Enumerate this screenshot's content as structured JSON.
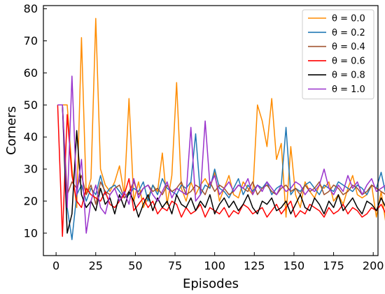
{
  "chart_data": {
    "type": "line",
    "xlabel": "Episodes",
    "ylabel": "Corners",
    "xlim": [
      -8,
      203
    ],
    "ylim": [
      3,
      81
    ],
    "x_ticks": [
      0,
      25,
      50,
      75,
      100,
      125,
      150,
      175,
      200
    ],
    "y_ticks": [
      10,
      20,
      30,
      40,
      50,
      60,
      70,
      80
    ],
    "grid": false,
    "legend_position": "top-right",
    "x_start": 1,
    "x_step": 3,
    "series": [
      {
        "name": "θ = 0.0",
        "color": "#ff8c00",
        "values": [
          50,
          50,
          50,
          30,
          18,
          71,
          22,
          27,
          77,
          30,
          25,
          23,
          26,
          31,
          22,
          52,
          20,
          26,
          18,
          21,
          25,
          23,
          35,
          19,
          28,
          57,
          24,
          20,
          26,
          22,
          25,
          27,
          24,
          29,
          20,
          24,
          28,
          22,
          21,
          26,
          24,
          22,
          50,
          45,
          37,
          52,
          33,
          38,
          15,
          37,
          22,
          18,
          26,
          23,
          21,
          25,
          24,
          26,
          20,
          22,
          19,
          24,
          28,
          22,
          21,
          22,
          25,
          15,
          23,
          13
        ]
      },
      {
        "name": "θ = 0.2",
        "color": "#1f77b4",
        "values": [
          50,
          50,
          18,
          8,
          22,
          25,
          20,
          24,
          22,
          28,
          22,
          24,
          25,
          23,
          21,
          22,
          24,
          23,
          26,
          20,
          25,
          22,
          27,
          24,
          23,
          22,
          25,
          24,
          26,
          41,
          22,
          25,
          24,
          30,
          24,
          23,
          21,
          24,
          27,
          22,
          25,
          23,
          25,
          24,
          26,
          22,
          24,
          25,
          43,
          22,
          24,
          23,
          25,
          26,
          24,
          22,
          25,
          24,
          23,
          26,
          25,
          24,
          23,
          25,
          24,
          22,
          25,
          24,
          29,
          22
        ]
      },
      {
        "name": "θ = 0.4",
        "color": "#a0522d",
        "values": [
          50,
          50,
          22,
          26,
          24,
          28,
          22,
          25,
          19,
          26,
          23,
          22,
          24,
          25,
          21,
          23,
          26,
          22,
          24,
          25,
          23,
          24,
          22,
          25,
          23,
          24,
          26,
          22,
          23,
          25,
          24,
          22,
          26,
          23,
          25,
          24,
          22,
          23,
          25,
          24,
          23,
          26,
          22,
          24,
          25,
          23,
          22,
          24,
          25,
          23,
          24,
          22,
          25,
          23,
          24,
          26,
          22,
          23,
          25,
          24,
          22,
          23,
          25,
          24,
          22,
          23,
          25,
          24,
          23,
          22
        ]
      },
      {
        "name": "θ = 0.6",
        "color": "#ff0000",
        "values": [
          50,
          9,
          47,
          28,
          20,
          18,
          24,
          22,
          21,
          20,
          23,
          19,
          18,
          20,
          22,
          27,
          17,
          19,
          21,
          18,
          20,
          16,
          18,
          17,
          20,
          19,
          15,
          18,
          16,
          17,
          19,
          15,
          18,
          17,
          16,
          18,
          15,
          17,
          16,
          19,
          18,
          16,
          17,
          18,
          15,
          17,
          19,
          16,
          18,
          20,
          15,
          17,
          16,
          19,
          18,
          17,
          15,
          18,
          16,
          17,
          19,
          16,
          18,
          17,
          15,
          16,
          18,
          17,
          19,
          16
        ]
      },
      {
        "name": "θ = 0.8",
        "color": "#000000",
        "values": [
          50,
          50,
          10,
          16,
          42,
          22,
          18,
          20,
          17,
          24,
          19,
          21,
          16,
          22,
          18,
          23,
          20,
          15,
          19,
          22,
          17,
          21,
          18,
          20,
          16,
          22,
          19,
          18,
          21,
          17,
          20,
          18,
          22,
          16,
          19,
          21,
          18,
          20,
          17,
          19,
          22,
          18,
          16,
          20,
          19,
          21,
          17,
          18,
          20,
          16,
          19,
          22,
          18,
          17,
          21,
          19,
          16,
          20,
          18,
          22,
          17,
          19,
          21,
          18,
          16,
          20,
          19,
          17,
          21,
          18
        ]
      },
      {
        "name": "θ = 1.0",
        "color": "#9932cc",
        "values": [
          50,
          50,
          18,
          59,
          22,
          33,
          10,
          20,
          25,
          18,
          16,
          22,
          24,
          20,
          23,
          19,
          27,
          21,
          24,
          25,
          22,
          20,
          23,
          26,
          21,
          24,
          23,
          22,
          43,
          20,
          22,
          45,
          25,
          28,
          22,
          24,
          26,
          23,
          25,
          24,
          27,
          22,
          25,
          23,
          26,
          24,
          22,
          25,
          23,
          24,
          26,
          25,
          22,
          24,
          23,
          25,
          30,
          24,
          22,
          25,
          23,
          28,
          24,
          26,
          22,
          25,
          27,
          23,
          24,
          25
        ]
      }
    ]
  }
}
